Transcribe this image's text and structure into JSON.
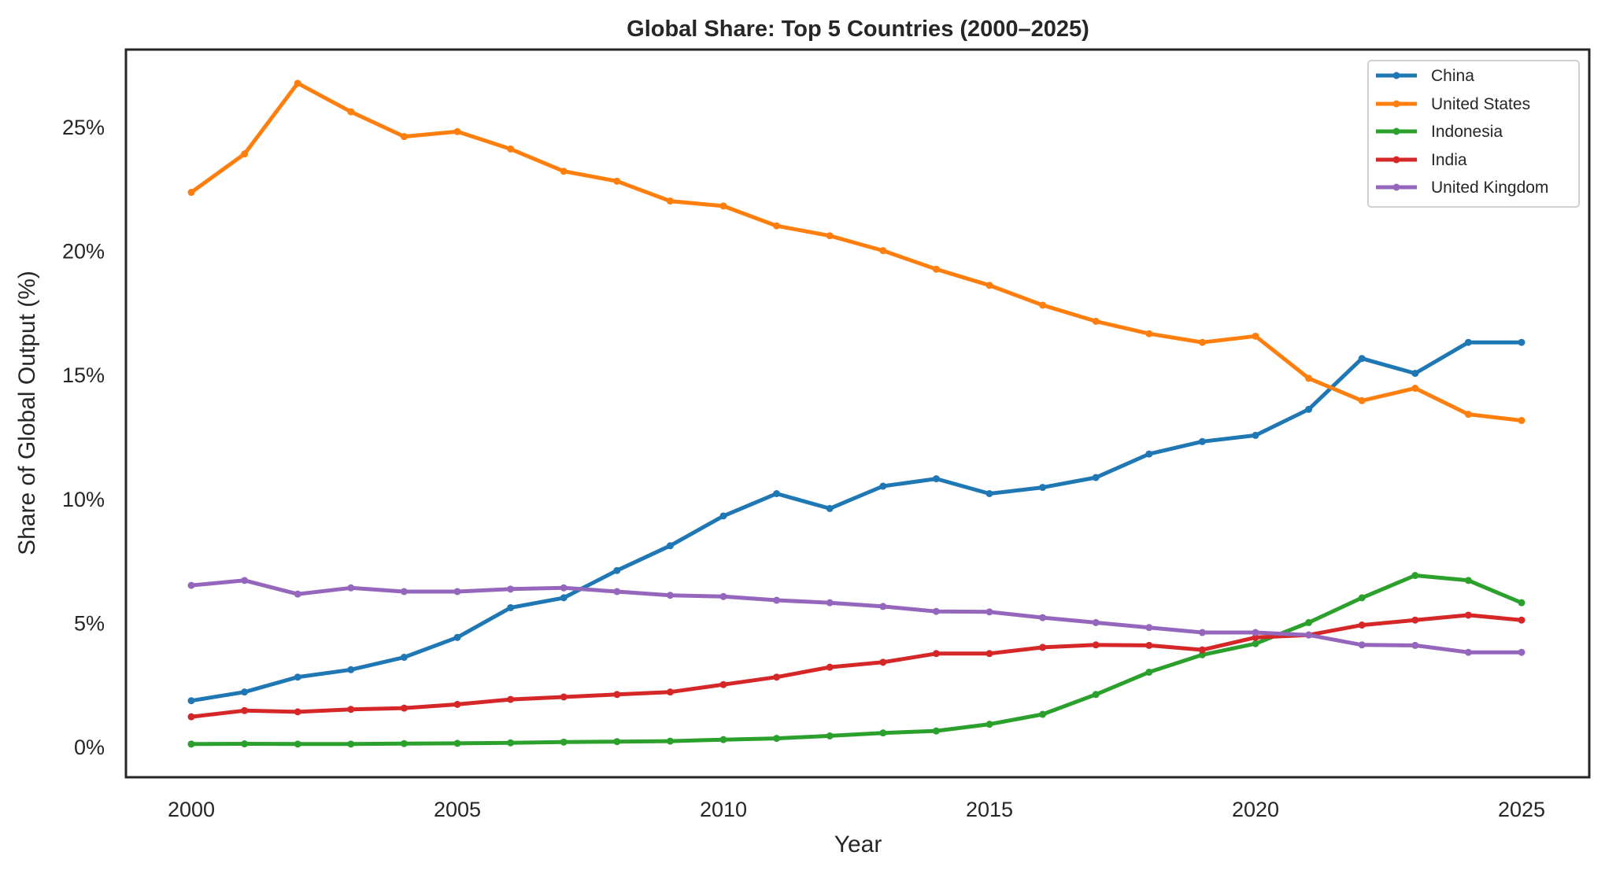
{
  "chart_data": {
    "type": "line",
    "title": "Global Share: Top 5 Countries (2000–2025)",
    "xlabel": "Year",
    "ylabel": "Share of Global Output (%)",
    "xlim": [
      1998.8,
      2026.2
    ],
    "ylim": [
      -1.3,
      28.0
    ],
    "x_ticks": [
      2000,
      2005,
      2010,
      2015,
      2020,
      2025
    ],
    "x_tick_labels": [
      "2000",
      "2005",
      "2010",
      "2015",
      "2020",
      "2025"
    ],
    "y_ticks": [
      0,
      5,
      10,
      15,
      20,
      25
    ],
    "y_tick_labels": [
      "0%",
      "5%",
      "10%",
      "15%",
      "20%",
      "25%"
    ],
    "grid": false,
    "legend_position": "top-right",
    "x": [
      2000,
      2001,
      2002,
      2003,
      2004,
      2005,
      2006,
      2007,
      2008,
      2009,
      2010,
      2011,
      2012,
      2013,
      2014,
      2015,
      2016,
      2017,
      2018,
      2019,
      2020,
      2021,
      2022,
      2023,
      2024,
      2025
    ],
    "series": [
      {
        "name": "China",
        "color": "#1f77b4",
        "values": [
          1.85,
          2.2,
          2.8,
          3.1,
          3.6,
          4.4,
          5.6,
          6.0,
          7.1,
          8.1,
          9.3,
          10.2,
          9.6,
          10.5,
          10.8,
          10.2,
          10.45,
          10.85,
          11.8,
          12.3,
          12.55,
          13.6,
          15.65,
          15.05,
          16.3,
          16.3
        ]
      },
      {
        "name": "United States",
        "color": "#ff7f0e",
        "values": [
          22.35,
          23.9,
          26.75,
          25.6,
          24.6,
          24.8,
          24.1,
          23.2,
          22.8,
          22.0,
          21.8,
          21.0,
          20.6,
          20.0,
          19.25,
          18.6,
          17.8,
          17.15,
          16.65,
          16.3,
          16.55,
          14.85,
          13.95,
          14.45,
          13.4,
          13.15
        ]
      },
      {
        "name": "Indonesia",
        "color": "#2ca02c",
        "values": [
          0.1,
          0.11,
          0.1,
          0.1,
          0.12,
          0.13,
          0.15,
          0.18,
          0.2,
          0.22,
          0.28,
          0.33,
          0.43,
          0.55,
          0.63,
          0.9,
          1.3,
          2.1,
          3.0,
          3.7,
          4.15,
          5.0,
          6.0,
          6.9,
          6.7,
          5.8
        ]
      },
      {
        "name": "India",
        "color": "#d62728",
        "values": [
          1.2,
          1.45,
          1.4,
          1.5,
          1.55,
          1.7,
          1.9,
          2.0,
          2.1,
          2.2,
          2.5,
          2.8,
          3.2,
          3.4,
          3.75,
          3.75,
          4.0,
          4.1,
          4.08,
          3.9,
          4.4,
          4.5,
          4.9,
          5.1,
          5.3,
          5.1
        ]
      },
      {
        "name": "United Kingdom",
        "color": "#9467bd",
        "values": [
          6.5,
          6.7,
          6.15,
          6.4,
          6.25,
          6.25,
          6.35,
          6.4,
          6.25,
          6.1,
          6.05,
          5.9,
          5.8,
          5.65,
          5.45,
          5.43,
          5.2,
          5.0,
          4.8,
          4.6,
          4.6,
          4.5,
          4.1,
          4.08,
          3.8,
          3.8
        ]
      }
    ]
  }
}
